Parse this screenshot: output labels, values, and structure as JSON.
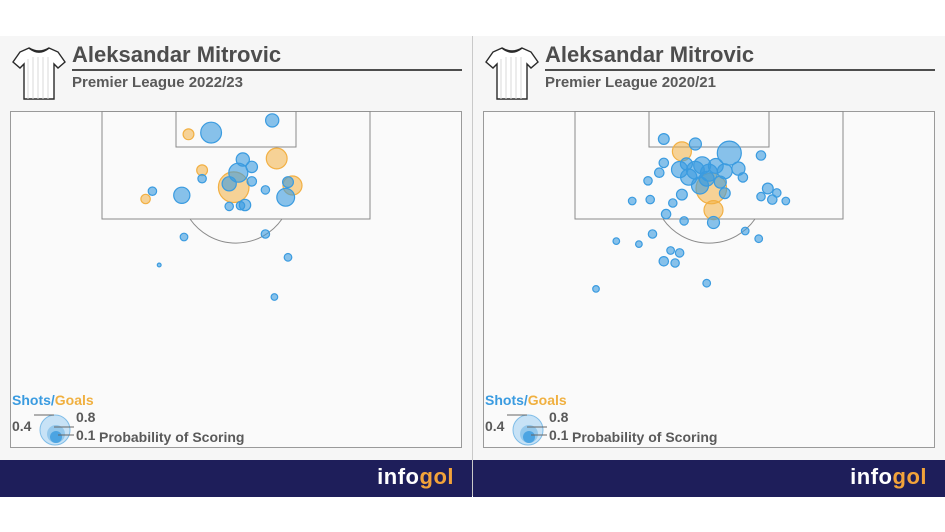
{
  "brand": {
    "text": "info",
    "accent": "gol"
  },
  "colors": {
    "shot": "#3a9be0",
    "goal": "#f2b044",
    "footer": "#1e1e5a"
  },
  "legend": {
    "shots_label": "Shots",
    "slash": "/",
    "goals_label": "Goals",
    "size_labels": [
      "0.4",
      "0.8",
      "0.1"
    ],
    "caption": "Probability of Scoring"
  },
  "chart_data": [
    {
      "type": "scatter",
      "title": "Aleksandar Mitrovic",
      "subtitle": "Premier League 2022/23",
      "xlabel": "",
      "ylabel": "",
      "units": "pitch position (% of width across, % of depth from goal line); size = probability of scoring",
      "shots": [
        {
          "x": 44.5,
          "y": 6.4,
          "xg": 0.3,
          "goal": false
        },
        {
          "x": 58.0,
          "y": 2.8,
          "xg": 0.12,
          "goal": false
        },
        {
          "x": 39.5,
          "y": 6.9,
          "xg": 0.08,
          "goal": true
        },
        {
          "x": 59.0,
          "y": 14.1,
          "xg": 0.3,
          "goal": true
        },
        {
          "x": 51.5,
          "y": 14.4,
          "xg": 0.12,
          "goal": false
        },
        {
          "x": 53.5,
          "y": 16.6,
          "xg": 0.09,
          "goal": false
        },
        {
          "x": 42.5,
          "y": 17.6,
          "xg": 0.08,
          "goal": true
        },
        {
          "x": 42.5,
          "y": 20.1,
          "xg": 0.05,
          "goal": false
        },
        {
          "x": 50.5,
          "y": 18.3,
          "xg": 0.25,
          "goal": false
        },
        {
          "x": 48.5,
          "y": 21.6,
          "xg": 0.14,
          "goal": false
        },
        {
          "x": 49.5,
          "y": 22.6,
          "xg": 0.65,
          "goal": true
        },
        {
          "x": 53.5,
          "y": 20.9,
          "xg": 0.06,
          "goal": false
        },
        {
          "x": 61.5,
          "y": 21.1,
          "xg": 0.08,
          "goal": false
        },
        {
          "x": 62.5,
          "y": 22.1,
          "xg": 0.25,
          "goal": true
        },
        {
          "x": 56.5,
          "y": 23.4,
          "xg": 0.05,
          "goal": false
        },
        {
          "x": 61.0,
          "y": 25.6,
          "xg": 0.22,
          "goal": false
        },
        {
          "x": 31.5,
          "y": 23.8,
          "xg": 0.05,
          "goal": false
        },
        {
          "x": 38.0,
          "y": 25.0,
          "xg": 0.18,
          "goal": false
        },
        {
          "x": 30.0,
          "y": 26.1,
          "xg": 0.06,
          "goal": true
        },
        {
          "x": 48.5,
          "y": 28.3,
          "xg": 0.05,
          "goal": false
        },
        {
          "x": 52.0,
          "y": 27.9,
          "xg": 0.09,
          "goal": false
        },
        {
          "x": 51.0,
          "y": 28.1,
          "xg": 0.05,
          "goal": false
        },
        {
          "x": 38.5,
          "y": 37.4,
          "xg": 0.04,
          "goal": false
        },
        {
          "x": 56.5,
          "y": 36.5,
          "xg": 0.05,
          "goal": false
        },
        {
          "x": 61.5,
          "y": 43.4,
          "xg": 0.04,
          "goal": false
        },
        {
          "x": 33.0,
          "y": 45.7,
          "xg": 0.01,
          "goal": false
        },
        {
          "x": 58.5,
          "y": 55.2,
          "xg": 0.03,
          "goal": false
        }
      ]
    },
    {
      "type": "scatter",
      "title": "Aleksandar Mitrovic",
      "subtitle": "Premier League 2020/21",
      "xlabel": "",
      "ylabel": "",
      "units": "pitch position (% of width across, % of depth from goal line); size = probability of scoring",
      "shots": [
        {
          "x": 40.0,
          "y": 8.3,
          "xg": 0.08,
          "goal": false
        },
        {
          "x": 47.0,
          "y": 9.8,
          "xg": 0.1,
          "goal": false
        },
        {
          "x": 44.0,
          "y": 12.0,
          "xg": 0.25,
          "goal": true
        },
        {
          "x": 54.5,
          "y": 12.5,
          "xg": 0.4,
          "goal": false
        },
        {
          "x": 61.5,
          "y": 13.2,
          "xg": 0.06,
          "goal": false
        },
        {
          "x": 40.0,
          "y": 15.4,
          "xg": 0.06,
          "goal": false
        },
        {
          "x": 45.0,
          "y": 15.7,
          "xg": 0.1,
          "goal": false
        },
        {
          "x": 48.5,
          "y": 16.1,
          "xg": 0.2,
          "goal": false
        },
        {
          "x": 51.5,
          "y": 16.3,
          "xg": 0.15,
          "goal": false
        },
        {
          "x": 43.5,
          "y": 17.4,
          "xg": 0.18,
          "goal": false
        },
        {
          "x": 47.0,
          "y": 17.6,
          "xg": 0.22,
          "goal": false
        },
        {
          "x": 50.0,
          "y": 18.3,
          "xg": 0.2,
          "goal": false
        },
        {
          "x": 53.5,
          "y": 17.9,
          "xg": 0.15,
          "goal": false
        },
        {
          "x": 56.5,
          "y": 17.1,
          "xg": 0.12,
          "goal": false
        },
        {
          "x": 39.0,
          "y": 18.3,
          "xg": 0.06,
          "goal": false
        },
        {
          "x": 45.5,
          "y": 19.6,
          "xg": 0.18,
          "goal": false
        },
        {
          "x": 49.5,
          "y": 20.1,
          "xg": 0.15,
          "goal": false
        },
        {
          "x": 52.5,
          "y": 21.1,
          "xg": 0.1,
          "goal": false
        },
        {
          "x": 57.5,
          "y": 19.7,
          "xg": 0.06,
          "goal": false
        },
        {
          "x": 36.5,
          "y": 20.7,
          "xg": 0.05,
          "goal": false
        },
        {
          "x": 48.0,
          "y": 22.1,
          "xg": 0.2,
          "goal": false
        },
        {
          "x": 50.5,
          "y": 23.0,
          "xg": 0.65,
          "goal": true
        },
        {
          "x": 53.5,
          "y": 24.4,
          "xg": 0.08,
          "goal": false
        },
        {
          "x": 44.0,
          "y": 24.8,
          "xg": 0.08,
          "goal": false
        },
        {
          "x": 63.0,
          "y": 23.0,
          "xg": 0.08,
          "goal": false
        },
        {
          "x": 65.0,
          "y": 24.3,
          "xg": 0.05,
          "goal": false
        },
        {
          "x": 61.5,
          "y": 25.4,
          "xg": 0.05,
          "goal": false
        },
        {
          "x": 64.0,
          "y": 26.3,
          "xg": 0.06,
          "goal": false
        },
        {
          "x": 67.0,
          "y": 26.7,
          "xg": 0.04,
          "goal": false
        },
        {
          "x": 33.0,
          "y": 26.7,
          "xg": 0.04,
          "goal": false
        },
        {
          "x": 37.0,
          "y": 26.3,
          "xg": 0.05,
          "goal": false
        },
        {
          "x": 42.0,
          "y": 27.3,
          "xg": 0.05,
          "goal": false
        },
        {
          "x": 51.0,
          "y": 29.4,
          "xg": 0.25,
          "goal": true
        },
        {
          "x": 40.5,
          "y": 30.6,
          "xg": 0.06,
          "goal": false
        },
        {
          "x": 44.5,
          "y": 32.6,
          "xg": 0.05,
          "goal": false
        },
        {
          "x": 51.0,
          "y": 33.1,
          "xg": 0.1,
          "goal": false
        },
        {
          "x": 58.0,
          "y": 35.6,
          "xg": 0.04,
          "goal": false
        },
        {
          "x": 37.5,
          "y": 36.5,
          "xg": 0.05,
          "goal": false
        },
        {
          "x": 61.0,
          "y": 37.9,
          "xg": 0.04,
          "goal": false
        },
        {
          "x": 29.5,
          "y": 38.6,
          "xg": 0.03,
          "goal": false
        },
        {
          "x": 34.5,
          "y": 39.5,
          "xg": 0.03,
          "goal": false
        },
        {
          "x": 41.5,
          "y": 41.4,
          "xg": 0.04,
          "goal": false
        },
        {
          "x": 43.5,
          "y": 42.1,
          "xg": 0.05,
          "goal": false
        },
        {
          "x": 40.0,
          "y": 44.6,
          "xg": 0.06,
          "goal": false
        },
        {
          "x": 42.5,
          "y": 45.1,
          "xg": 0.05,
          "goal": false
        },
        {
          "x": 49.5,
          "y": 51.1,
          "xg": 0.04,
          "goal": false
        },
        {
          "x": 25.0,
          "y": 52.8,
          "xg": 0.03,
          "goal": false
        }
      ]
    }
  ]
}
